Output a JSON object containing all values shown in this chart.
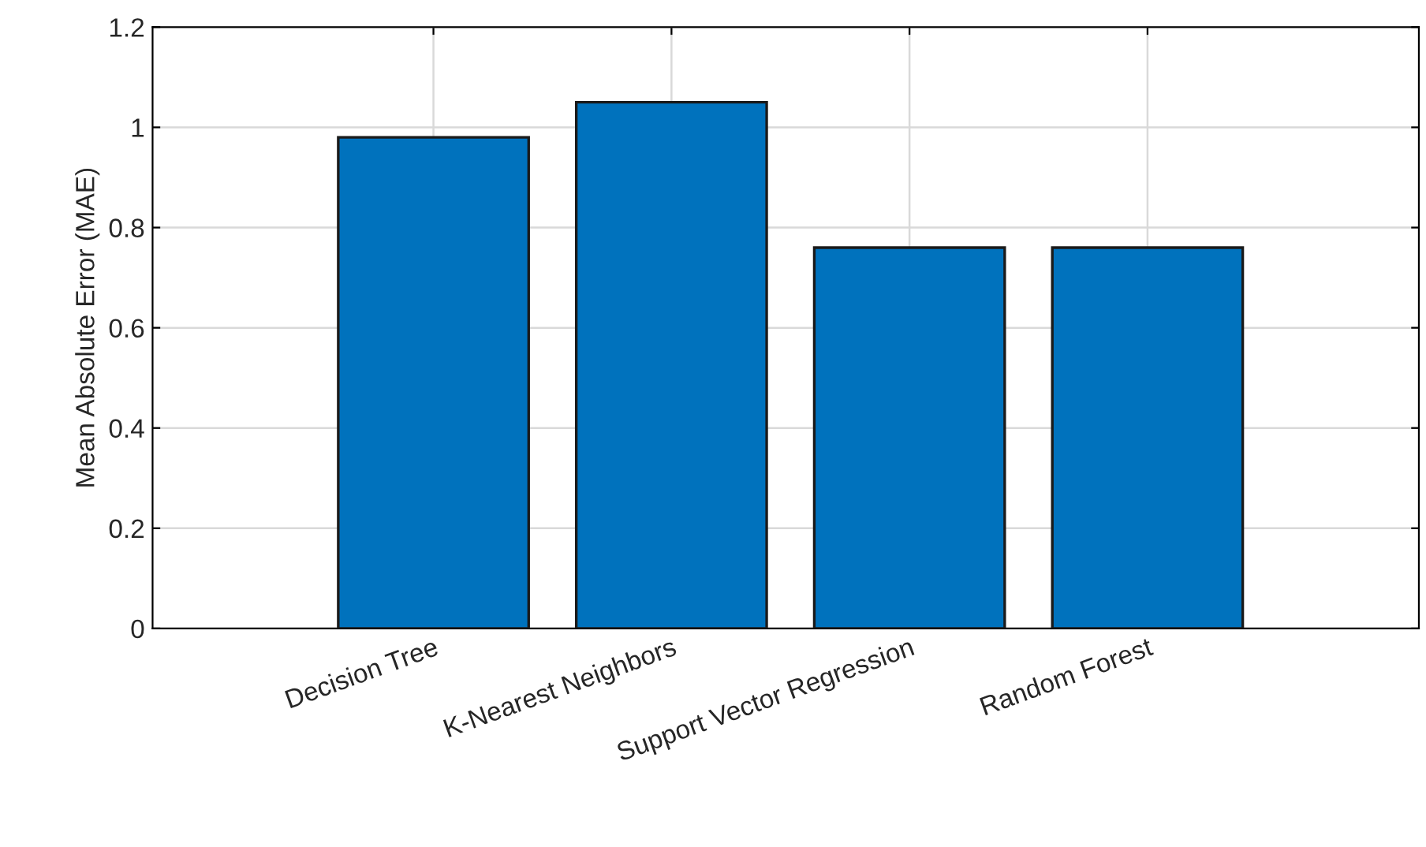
{
  "chart_data": {
    "type": "bar",
    "ylabel": "Mean Absolute Error (MAE)",
    "categories": [
      "Decision Tree",
      "K-Nearest Neighbors",
      "Support Vector Regression",
      "Random Forest"
    ],
    "values": [
      0.98,
      1.05,
      0.76,
      0.76
    ],
    "color": "#0072bd",
    "ylim": [
      0,
      1.2
    ],
    "yticks": [
      0,
      0.2,
      0.4,
      0.6,
      0.8,
      1,
      1.2
    ],
    "grid": true
  }
}
